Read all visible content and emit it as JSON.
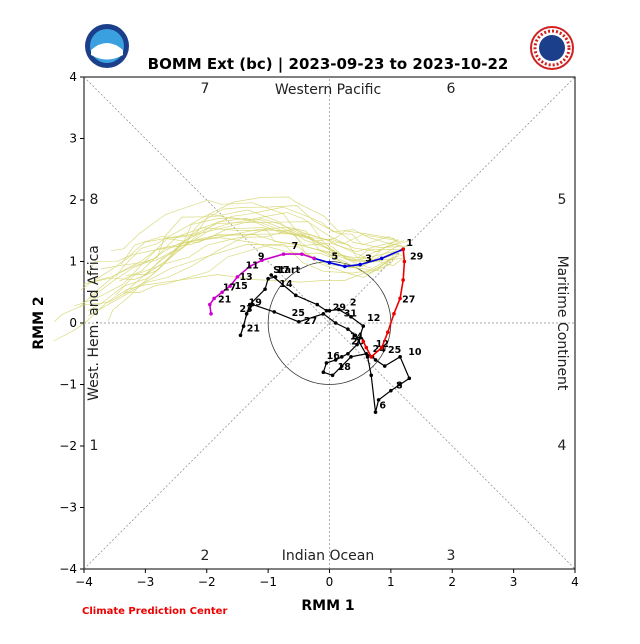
{
  "title": "BOMM Ext (bc) | 2023-09-23 to 2023-10-22",
  "footer": "Climate Prediction Center",
  "colors": {
    "ensemble": "#d4d46a",
    "observed": "#000000",
    "fc_blue": "#0000dd",
    "fc_magenta": "#cc00cc",
    "fc_red": "#ee0000",
    "footer": "#ee0000"
  },
  "logos": [
    "noaa-logo",
    "nws-logo"
  ],
  "chart_data": {
    "type": "line",
    "title": "BOMM Ext (bc) | 2023-09-23 to 2023-10-22",
    "xlabel": "RMM 1",
    "ylabel": "RMM 2",
    "xlim": [
      -4,
      4
    ],
    "ylim": [
      -4,
      4
    ],
    "xticks": [
      "−4",
      "−3",
      "−2",
      "−1",
      "0",
      "1",
      "2",
      "3",
      "4"
    ],
    "yticks": [
      "−4",
      "−3",
      "−2",
      "−1",
      "0",
      "1",
      "2",
      "3",
      "4"
    ],
    "region_labels": {
      "top": "Western Pacific",
      "bottom": "Indian Ocean",
      "left": "West. Hem. and Africa",
      "right": "Maritime Continent"
    },
    "phase_labels": [
      "1",
      "2",
      "3",
      "4",
      "5",
      "6",
      "7",
      "8"
    ],
    "observed": {
      "points": [
        [
          -0.95,
          0.78
        ],
        [
          -0.55,
          0.45
        ],
        [
          -0.2,
          0.3
        ],
        [
          -0.05,
          0.2
        ],
        [
          0.0,
          0.2
        ],
        [
          0.15,
          0.22
        ],
        [
          0.35,
          0.1
        ],
        [
          0.55,
          -0.05
        ],
        [
          0.45,
          -0.35
        ],
        [
          0.3,
          -0.5
        ],
        [
          0.2,
          -0.55
        ],
        [
          0.1,
          -0.6
        ],
        [
          -0.05,
          -0.65
        ],
        [
          -0.1,
          -0.8
        ],
        [
          0.05,
          -0.85
        ],
        [
          0.2,
          -0.7
        ],
        [
          0.35,
          -0.55
        ],
        [
          0.6,
          -0.5
        ],
        [
          0.7,
          -0.55
        ],
        [
          0.75,
          -0.6
        ],
        [
          0.9,
          -0.7
        ],
        [
          1.15,
          -0.55
        ],
        [
          1.3,
          -0.9
        ],
        [
          1.15,
          -1.0
        ],
        [
          1.0,
          -1.1
        ],
        [
          0.8,
          -1.25
        ],
        [
          0.75,
          -1.45
        ],
        [
          0.68,
          -0.85
        ],
        [
          0.62,
          -0.55
        ],
        [
          0.42,
          -0.2
        ],
        [
          0.3,
          -0.1
        ],
        [
          0.1,
          0.0
        ],
        [
          -0.1,
          0.15
        ],
        [
          -0.5,
          0.02
        ],
        [
          -0.9,
          0.18
        ],
        [
          -1.25,
          0.3
        ],
        [
          -1.35,
          0.15
        ],
        [
          -1.4,
          -0.05
        ],
        [
          -1.45,
          -0.2
        ],
        [
          -1.3,
          0.3
        ],
        [
          -1.05,
          0.55
        ],
        [
          -1.0,
          0.72
        ],
        [
          -0.88,
          0.75
        ]
      ],
      "labels": [
        {
          "text": "Start",
          "x": -0.95,
          "y": 0.78
        },
        {
          "text": "17",
          "x": -0.9,
          "y": 0.78
        },
        {
          "text": "14",
          "x": -0.85,
          "y": 0.55
        },
        {
          "text": "25",
          "x": -0.65,
          "y": 0.08
        },
        {
          "text": "27",
          "x": -0.45,
          "y": -0.05
        },
        {
          "text": "19",
          "x": -1.35,
          "y": 0.25
        },
        {
          "text": "23",
          "x": -1.5,
          "y": 0.15
        },
        {
          "text": "21",
          "x": -1.38,
          "y": -0.17
        },
        {
          "text": "29",
          "x": 0.02,
          "y": 0.17
        },
        {
          "text": "31",
          "x": 0.2,
          "y": 0.07
        },
        {
          "text": "2",
          "x": 0.3,
          "y": 0.25
        },
        {
          "text": "12",
          "x": 0.58,
          "y": 0.0
        },
        {
          "text": "14",
          "x": 0.3,
          "y": -0.3
        },
        {
          "text": "20",
          "x": 0.32,
          "y": -0.38
        },
        {
          "text": "16",
          "x": -0.08,
          "y": -0.62
        },
        {
          "text": "18",
          "x": 0.1,
          "y": -0.8
        },
        {
          "text": "12",
          "x": 0.72,
          "y": -0.42
        },
        {
          "text": "24",
          "x": 0.67,
          "y": -0.5
        },
        {
          "text": "25",
          "x": 0.92,
          "y": -0.52
        },
        {
          "text": "10",
          "x": 1.25,
          "y": -0.55
        },
        {
          "text": "8",
          "x": 1.05,
          "y": -1.1
        },
        {
          "text": "6",
          "x": 0.78,
          "y": -1.42
        }
      ]
    },
    "forecast": [
      {
        "color": "#0000dd",
        "points": [
          [
            1.2,
            1.2
          ],
          [
            0.85,
            1.05
          ],
          [
            0.5,
            0.95
          ],
          [
            0.25,
            0.92
          ],
          [
            0.0,
            0.98
          ],
          [
            -0.25,
            1.05
          ]
        ],
        "labels": [
          {
            "text": "1",
            "x": 1.22,
            "y": 1.22
          },
          {
            "text": "3",
            "x": 0.55,
            "y": 0.97
          },
          {
            "text": "5",
            "x": 0.0,
            "y": 1.0
          }
        ]
      },
      {
        "color": "#cc00cc",
        "points": [
          [
            -0.25,
            1.05
          ],
          [
            -0.45,
            1.12
          ],
          [
            -0.75,
            1.12
          ],
          [
            -1.1,
            1.02
          ],
          [
            -1.3,
            0.92
          ],
          [
            -1.5,
            0.75
          ],
          [
            -1.62,
            0.6
          ],
          [
            -1.75,
            0.5
          ],
          [
            -1.88,
            0.4
          ],
          [
            -1.95,
            0.3
          ],
          [
            -1.93,
            0.15
          ]
        ],
        "labels": [
          {
            "text": "7",
            "x": -0.65,
            "y": 1.17
          },
          {
            "text": "9",
            "x": -1.2,
            "y": 1.0
          },
          {
            "text": "11",
            "x": -1.4,
            "y": 0.85
          },
          {
            "text": "13",
            "x": -1.5,
            "y": 0.67
          },
          {
            "text": "15",
            "x": -1.58,
            "y": 0.52
          },
          {
            "text": "17",
            "x": -1.77,
            "y": 0.5
          },
          {
            "text": "21",
            "x": -1.85,
            "y": 0.3
          }
        ]
      },
      {
        "color": "#ee0000",
        "points": [
          [
            1.2,
            1.2
          ],
          [
            1.22,
            1.0
          ],
          [
            1.2,
            0.7
          ],
          [
            1.15,
            0.4
          ],
          [
            1.05,
            0.15
          ],
          [
            0.95,
            -0.15
          ],
          [
            0.85,
            -0.4
          ],
          [
            0.68,
            -0.55
          ],
          [
            0.6,
            -0.4
          ],
          [
            0.55,
            -0.3
          ]
        ],
        "labels": [
          {
            "text": "29",
            "x": 1.28,
            "y": 1.0
          },
          {
            "text": "27",
            "x": 1.15,
            "y": 0.3
          }
        ]
      }
    ],
    "ensemble_count": 22
  }
}
